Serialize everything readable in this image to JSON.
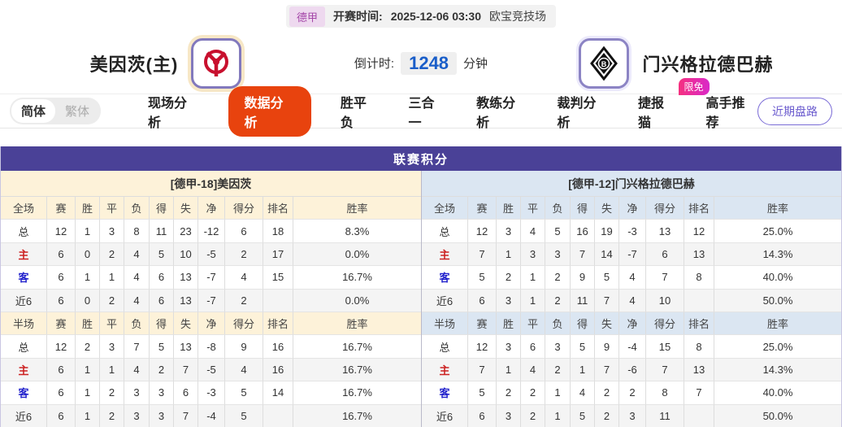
{
  "meta": {
    "league": "德甲",
    "kickoff_label": "开赛时间:",
    "kickoff_time": "2025-12-06 03:30",
    "venue": "欧宝竞技场"
  },
  "teams": {
    "home": {
      "name": "美因茨(主)",
      "logo": "mainz-crest"
    },
    "away": {
      "name": "门兴格拉德巴赫",
      "logo": "gladbach-crest"
    }
  },
  "countdown": {
    "label": "倒计时:",
    "value": "1248",
    "unit": "分钟"
  },
  "lang_toggle": {
    "simplified": "简体",
    "traditional": "繁体",
    "active": "简体"
  },
  "nav": {
    "tabs": [
      {
        "label": "现场分析",
        "active": false
      },
      {
        "label": "数据分析",
        "active": true
      },
      {
        "label": "胜平负",
        "active": false
      },
      {
        "label": "三合一",
        "active": false
      },
      {
        "label": "教练分析",
        "active": false
      },
      {
        "label": "裁判分析",
        "active": false
      },
      {
        "label": "捷报猫",
        "active": false,
        "badge": "限免"
      },
      {
        "label": "高手推荐",
        "active": false
      }
    ],
    "right_button": "近期盘路"
  },
  "league_table": {
    "title": "联赛积分",
    "columns_full": [
      "全场",
      "赛",
      "胜",
      "平",
      "负",
      "得",
      "失",
      "净",
      "得分",
      "排名",
      "胜率"
    ],
    "columns_half": [
      "半场",
      "赛",
      "胜",
      "平",
      "负",
      "得",
      "失",
      "净",
      "得分",
      "排名",
      "胜率"
    ],
    "left": {
      "team_title": "[德甲-18]美因茨",
      "full_rows": [
        [
          "总",
          "12",
          "1",
          "3",
          "8",
          "11",
          "23",
          "-12",
          "6",
          "18",
          "8.3%"
        ],
        [
          "主",
          "6",
          "0",
          "2",
          "4",
          "5",
          "10",
          "-5",
          "2",
          "17",
          "0.0%"
        ],
        [
          "客",
          "6",
          "1",
          "1",
          "4",
          "6",
          "13",
          "-7",
          "4",
          "15",
          "16.7%"
        ],
        [
          "近6",
          "6",
          "0",
          "2",
          "4",
          "6",
          "13",
          "-7",
          "2",
          "",
          "0.0%"
        ]
      ],
      "half_rows": [
        [
          "总",
          "12",
          "2",
          "3",
          "7",
          "5",
          "13",
          "-8",
          "9",
          "16",
          "16.7%"
        ],
        [
          "主",
          "6",
          "1",
          "1",
          "4",
          "2",
          "7",
          "-5",
          "4",
          "16",
          "16.7%"
        ],
        [
          "客",
          "6",
          "1",
          "2",
          "3",
          "3",
          "6",
          "-3",
          "5",
          "14",
          "16.7%"
        ],
        [
          "近6",
          "6",
          "1",
          "2",
          "3",
          "3",
          "7",
          "-4",
          "5",
          "",
          "16.7%"
        ]
      ]
    },
    "right": {
      "team_title": "[德甲-12]门兴格拉德巴赫",
      "full_rows": [
        [
          "总",
          "12",
          "3",
          "4",
          "5",
          "16",
          "19",
          "-3",
          "13",
          "12",
          "25.0%"
        ],
        [
          "主",
          "7",
          "1",
          "3",
          "3",
          "7",
          "14",
          "-7",
          "6",
          "13",
          "14.3%"
        ],
        [
          "客",
          "5",
          "2",
          "1",
          "2",
          "9",
          "5",
          "4",
          "7",
          "8",
          "40.0%"
        ],
        [
          "近6",
          "6",
          "3",
          "1",
          "2",
          "11",
          "7",
          "4",
          "10",
          "",
          "50.0%"
        ]
      ],
      "half_rows": [
        [
          "总",
          "12",
          "3",
          "6",
          "3",
          "5",
          "9",
          "-4",
          "15",
          "8",
          "25.0%"
        ],
        [
          "主",
          "7",
          "1",
          "4",
          "2",
          "1",
          "7",
          "-6",
          "7",
          "13",
          "14.3%"
        ],
        [
          "客",
          "5",
          "2",
          "2",
          "1",
          "4",
          "2",
          "2",
          "8",
          "7",
          "40.0%"
        ],
        [
          "近6",
          "6",
          "3",
          "2",
          "1",
          "5",
          "2",
          "3",
          "11",
          "",
          "50.0%"
        ]
      ]
    }
  },
  "colors": {
    "accent_tab_red": "#e8430e",
    "title_purple": "#4a4197",
    "left_header_cream": "#fdf2d9",
    "right_header_blue": "#dbe6f2",
    "home_label_red": "#cc2222",
    "away_label_blue": "#2222cc",
    "countdown_blue": "#1a5ec9",
    "badge_pink_start": "#f5317f",
    "badge_pink_end": "#d929c9",
    "recent_button_purple": "#6a5ace",
    "mainz_red": "#c8102e",
    "gladbach_black": "#111111"
  }
}
